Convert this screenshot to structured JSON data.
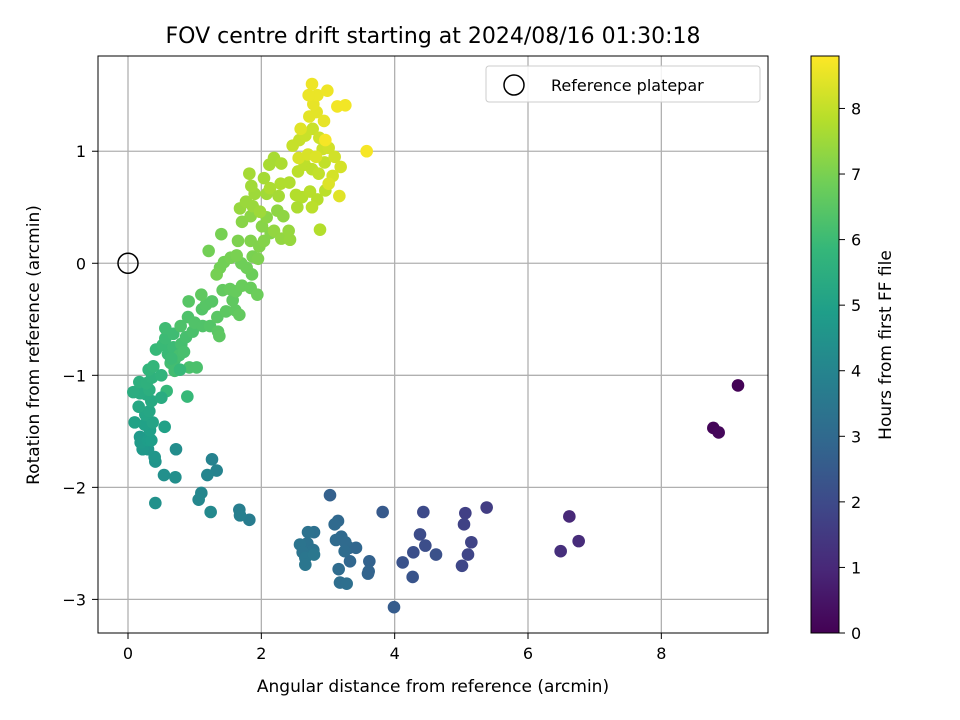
{
  "chart_data": {
    "type": "scatter",
    "title": "FOV centre drift starting at 2024/08/16 01:30:18",
    "xlabel": "Angular distance from reference (arcmin)",
    "ylabel": "Rotation from reference (arcmin)",
    "xlim": [
      -0.45,
      9.6
    ],
    "ylim": [
      -3.3,
      1.85
    ],
    "xticks": [
      0,
      2,
      4,
      6,
      8
    ],
    "yticks": [
      -3,
      -2,
      -1,
      0,
      1
    ],
    "grid": true,
    "legend": {
      "entries": [
        "Reference platepar"
      ],
      "placement": "top-right"
    },
    "colorbar": {
      "label": "Hours from first FF file",
      "colormap": "viridis",
      "range": [
        0,
        8.8
      ],
      "ticks": [
        0,
        1,
        2,
        3,
        4,
        5,
        6,
        7,
        8
      ]
    },
    "reference_point": {
      "x": 0,
      "y": 0
    },
    "colormap_stops": [
      "#440154",
      "#482878",
      "#3e4989",
      "#31688e",
      "#26828e",
      "#1f9e89",
      "#35b779",
      "#6ece58",
      "#b5de2b",
      "#fde725"
    ],
    "series": [
      {
        "columns": [
          "x",
          "y",
          "hours"
        ],
        "points": [
          [
            9.15,
            -1.09,
            0.05
          ],
          [
            8.78,
            -1.47,
            0.1
          ],
          [
            8.86,
            -1.51,
            0.15
          ],
          [
            6.62,
            -2.26,
            1.0
          ],
          [
            6.76,
            -2.48,
            1.1
          ],
          [
            6.49,
            -2.57,
            1.2
          ],
          [
            5.38,
            -2.18,
            1.6
          ],
          [
            5.06,
            -2.23,
            1.7
          ],
          [
            5.04,
            -2.33,
            1.75
          ],
          [
            5.15,
            -2.49,
            1.8
          ],
          [
            5.1,
            -2.6,
            1.85
          ],
          [
            5.01,
            -2.7,
            1.9
          ],
          [
            4.43,
            -2.22,
            2.0
          ],
          [
            4.38,
            -2.42,
            2.05
          ],
          [
            4.46,
            -2.52,
            2.1
          ],
          [
            4.28,
            -2.58,
            2.15
          ],
          [
            4.62,
            -2.6,
            2.2
          ],
          [
            4.12,
            -2.67,
            2.25
          ],
          [
            4.27,
            -2.8,
            2.3
          ],
          [
            3.82,
            -2.22,
            2.5
          ],
          [
            3.99,
            -3.07,
            2.55
          ],
          [
            3.03,
            -2.07,
            2.7
          ],
          [
            3.62,
            -2.66,
            2.75
          ],
          [
            3.61,
            -2.75,
            2.8
          ],
          [
            3.6,
            -2.77,
            2.8
          ],
          [
            3.32,
            -2.54,
            2.85
          ],
          [
            3.42,
            -2.54,
            2.9
          ],
          [
            3.33,
            -2.66,
            2.9
          ],
          [
            3.15,
            -2.3,
            2.95
          ],
          [
            3.1,
            -2.33,
            3.0
          ],
          [
            3.2,
            -2.44,
            3.0
          ],
          [
            3.12,
            -2.47,
            3.05
          ],
          [
            3.26,
            -2.49,
            3.05
          ],
          [
            3.25,
            -2.57,
            3.1
          ],
          [
            3.16,
            -2.73,
            3.1
          ],
          [
            3.18,
            -2.85,
            3.15
          ],
          [
            3.28,
            -2.86,
            3.2
          ],
          [
            2.79,
            -2.4,
            3.25
          ],
          [
            2.7,
            -2.4,
            3.3
          ],
          [
            2.69,
            -2.5,
            3.3
          ],
          [
            2.78,
            -2.56,
            3.35
          ],
          [
            2.58,
            -2.51,
            3.4
          ],
          [
            2.62,
            -2.58,
            3.4
          ],
          [
            2.66,
            -2.63,
            3.45
          ],
          [
            2.66,
            -2.69,
            3.45
          ],
          [
            2.79,
            -2.6,
            3.5
          ],
          [
            1.82,
            -2.29,
            3.7
          ],
          [
            1.67,
            -2.2,
            3.75
          ],
          [
            1.68,
            -2.25,
            3.8
          ],
          [
            1.26,
            -1.75,
            3.9
          ],
          [
            1.33,
            -1.85,
            3.95
          ],
          [
            1.19,
            -1.89,
            4.0
          ],
          [
            1.1,
            -2.05,
            4.05
          ],
          [
            1.06,
            -2.11,
            4.1
          ],
          [
            1.24,
            -2.22,
            4.15
          ],
          [
            0.72,
            -1.66,
            4.3
          ],
          [
            0.71,
            -1.91,
            4.35
          ],
          [
            0.54,
            -1.89,
            4.4
          ],
          [
            0.41,
            -2.14,
            4.45
          ],
          [
            0.41,
            -1.77,
            4.55
          ],
          [
            0.4,
            -1.73,
            4.6
          ],
          [
            0.3,
            -1.66,
            4.65
          ],
          [
            0.22,
            -1.66,
            4.7
          ],
          [
            0.18,
            -1.55,
            4.75
          ],
          [
            0.19,
            -1.6,
            4.8
          ],
          [
            0.3,
            -1.58,
            4.85
          ],
          [
            0.35,
            -1.58,
            4.9
          ],
          [
            0.33,
            -1.49,
            4.95
          ],
          [
            0.55,
            -1.46,
            5.0
          ],
          [
            0.25,
            -1.44,
            5.0
          ],
          [
            0.1,
            -1.42,
            5.05
          ],
          [
            0.37,
            -1.42,
            5.1
          ],
          [
            0.26,
            -1.35,
            5.15
          ],
          [
            0.32,
            -1.32,
            5.2
          ],
          [
            0.16,
            -1.28,
            5.25
          ],
          [
            0.35,
            -1.23,
            5.3
          ],
          [
            0.27,
            -1.17,
            5.35
          ],
          [
            0.18,
            -1.16,
            5.4
          ],
          [
            0.08,
            -1.15,
            5.45
          ],
          [
            0.32,
            -1.13,
            5.5
          ],
          [
            0.17,
            -1.06,
            5.55
          ],
          [
            0.28,
            -1.07,
            5.6
          ],
          [
            0.36,
            -1.02,
            5.65
          ],
          [
            0.5,
            -1.0,
            5.7
          ],
          [
            0.31,
            -0.95,
            5.75
          ],
          [
            0.38,
            -0.92,
            5.8
          ],
          [
            0.58,
            -1.14,
            5.85
          ],
          [
            0.89,
            -1.19,
            5.9
          ],
          [
            0.42,
            -0.77,
            5.9
          ],
          [
            0.52,
            -0.73,
            5.95
          ],
          [
            0.6,
            -0.81,
            5.95
          ],
          [
            0.68,
            -0.75,
            6.0
          ],
          [
            0.56,
            -0.67,
            6.0
          ],
          [
            0.56,
            -0.58,
            6.05
          ],
          [
            0.68,
            -0.63,
            6.05
          ],
          [
            0.7,
            -0.86,
            6.1
          ],
          [
            0.64,
            -0.89,
            6.1
          ],
          [
            0.7,
            -0.96,
            6.1
          ],
          [
            0.77,
            -0.82,
            6.15
          ],
          [
            0.8,
            -0.72,
            6.15
          ],
          [
            0.84,
            -0.79,
            6.2
          ],
          [
            0.87,
            -0.66,
            6.2
          ],
          [
            0.97,
            -0.61,
            6.25
          ],
          [
            0.92,
            -0.93,
            6.25
          ],
          [
            1.03,
            -0.93,
            6.25
          ],
          [
            0.79,
            -0.56,
            6.3
          ],
          [
            0.9,
            -0.48,
            6.3
          ],
          [
            1.0,
            -0.53,
            6.35
          ],
          [
            1.12,
            -0.56,
            6.35
          ],
          [
            1.23,
            -0.56,
            6.4
          ],
          [
            1.11,
            -0.41,
            6.4
          ],
          [
            1.17,
            -0.37,
            6.45
          ],
          [
            1.26,
            -0.34,
            6.45
          ],
          [
            1.34,
            -0.48,
            6.5
          ],
          [
            1.35,
            -0.61,
            6.5
          ],
          [
            1.37,
            -0.65,
            6.55
          ],
          [
            1.47,
            -0.43,
            6.55
          ],
          [
            1.57,
            -0.33,
            6.6
          ],
          [
            1.61,
            -0.42,
            6.6
          ],
          [
            1.67,
            -0.46,
            6.65
          ],
          [
            1.42,
            -0.24,
            6.65
          ],
          [
            1.53,
            -0.23,
            6.7
          ],
          [
            1.62,
            -0.25,
            6.7
          ],
          [
            1.71,
            -0.2,
            6.75
          ],
          [
            1.84,
            -0.22,
            6.75
          ],
          [
            1.94,
            -0.28,
            6.8
          ],
          [
            1.86,
            -0.1,
            6.8
          ],
          [
            1.78,
            -0.04,
            6.85
          ],
          [
            1.7,
            0.0,
            6.85
          ],
          [
            1.38,
            -0.04,
            6.9
          ],
          [
            1.44,
            0.01,
            6.9
          ],
          [
            1.33,
            -0.1,
            6.95
          ],
          [
            1.54,
            0.05,
            6.95
          ],
          [
            1.63,
            0.07,
            7.0
          ],
          [
            1.87,
            0.06,
            7.0
          ],
          [
            1.95,
            0.04,
            7.05
          ],
          [
            1.65,
            0.2,
            7.05
          ],
          [
            1.84,
            0.2,
            7.1
          ],
          [
            1.97,
            0.15,
            7.1
          ],
          [
            2.04,
            0.2,
            7.15
          ],
          [
            2.14,
            0.27,
            7.15
          ],
          [
            2.01,
            0.33,
            7.2
          ],
          [
            1.71,
            0.37,
            7.2
          ],
          [
            1.84,
            0.42,
            7.25
          ],
          [
            2.08,
            0.41,
            7.25
          ],
          [
            2.24,
            0.47,
            7.3
          ],
          [
            2.33,
            0.42,
            7.3
          ],
          [
            2.19,
            0.29,
            7.35
          ],
          [
            2.3,
            0.22,
            7.35
          ],
          [
            2.43,
            0.21,
            7.4
          ],
          [
            1.68,
            0.49,
            7.4
          ],
          [
            1.77,
            0.55,
            7.45
          ],
          [
            1.87,
            0.51,
            7.45
          ],
          [
            1.98,
            0.46,
            7.5
          ],
          [
            1.9,
            0.62,
            7.5
          ],
          [
            2.08,
            0.62,
            7.55
          ],
          [
            1.85,
            0.69,
            7.55
          ],
          [
            1.82,
            0.8,
            7.6
          ],
          [
            2.04,
            0.76,
            7.6
          ],
          [
            2.12,
            0.88,
            7.65
          ],
          [
            2.19,
            0.94,
            7.65
          ],
          [
            2.3,
            0.89,
            7.7
          ],
          [
            2.13,
            0.67,
            7.7
          ],
          [
            2.29,
            0.71,
            7.75
          ],
          [
            2.42,
            0.72,
            7.75
          ],
          [
            2.52,
            0.61,
            7.8
          ],
          [
            2.61,
            0.59,
            7.8
          ],
          [
            2.73,
            0.64,
            7.85
          ],
          [
            2.84,
            0.57,
            7.85
          ],
          [
            2.96,
            0.65,
            7.9
          ],
          [
            2.55,
            0.82,
            7.9
          ],
          [
            2.65,
            0.88,
            7.95
          ],
          [
            2.76,
            0.84,
            7.95
          ],
          [
            2.86,
            0.8,
            8.0
          ],
          [
            2.95,
            0.9,
            8.0
          ],
          [
            2.47,
            1.05,
            8.05
          ],
          [
            2.57,
            1.1,
            8.05
          ],
          [
            2.66,
            1.14,
            8.1
          ],
          [
            2.77,
            1.2,
            8.1
          ],
          [
            2.87,
            1.12,
            8.15
          ],
          [
            2.92,
            1.02,
            8.15
          ],
          [
            3.01,
            1.03,
            8.2
          ],
          [
            3.1,
            0.95,
            8.2
          ],
          [
            3.19,
            0.86,
            8.25
          ],
          [
            3.07,
            0.78,
            8.25
          ],
          [
            2.56,
            0.94,
            8.3
          ],
          [
            2.7,
            0.97,
            8.3
          ],
          [
            2.82,
            0.95,
            8.35
          ],
          [
            3.01,
            0.71,
            8.35
          ],
          [
            3.17,
            0.6,
            8.4
          ],
          [
            2.59,
            1.2,
            8.4
          ],
          [
            2.72,
            1.31,
            8.45
          ],
          [
            2.83,
            1.35,
            8.45
          ],
          [
            2.94,
            1.27,
            8.5
          ],
          [
            2.78,
            1.42,
            8.5
          ],
          [
            2.84,
            1.5,
            8.55
          ],
          [
            2.71,
            1.5,
            8.55
          ],
          [
            2.76,
            1.6,
            8.6
          ],
          [
            2.99,
            1.54,
            8.6
          ],
          [
            3.14,
            1.4,
            8.65
          ],
          [
            3.26,
            1.41,
            8.65
          ],
          [
            3.58,
            1.0,
            8.7
          ],
          [
            2.96,
            1.1,
            8.7
          ],
          [
            2.88,
            0.3,
            7.8
          ],
          [
            2.76,
            0.5,
            7.9
          ],
          [
            2.41,
            0.29,
            7.4
          ],
          [
            2.54,
            0.5,
            7.7
          ],
          [
            2.26,
            0.6,
            7.6
          ],
          [
            1.4,
            0.26,
            6.95
          ],
          [
            1.21,
            0.11,
            6.9
          ],
          [
            1.1,
            -0.28,
            6.6
          ],
          [
            0.91,
            -0.34,
            6.45
          ],
          [
            0.65,
            -0.85,
            6.0
          ],
          [
            0.5,
            -1.2,
            5.4
          ],
          [
            0.78,
            -0.95,
            5.9
          ]
        ]
      }
    ]
  }
}
